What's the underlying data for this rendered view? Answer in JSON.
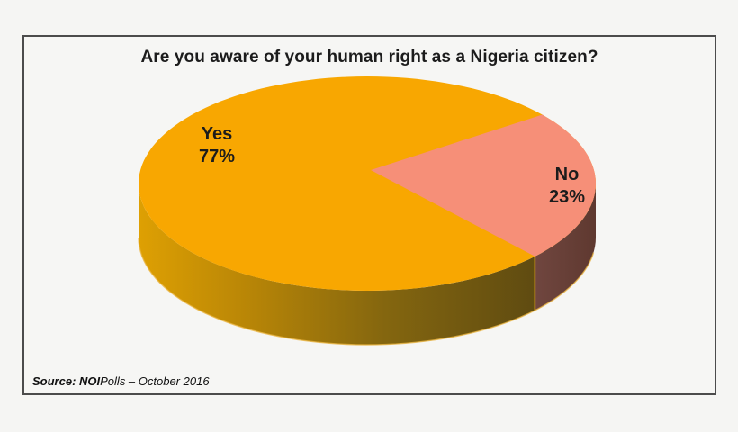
{
  "page": {
    "background": "#f5f5f3"
  },
  "frame": {
    "border_color": "#4c4c4c",
    "background": "#f6f6f4"
  },
  "chart_data": {
    "type": "pie",
    "effect": "3d",
    "title": "Are you aware of your human right as a Nigeria citizen?",
    "legend": "none",
    "labels_on_chart": true,
    "start_angle_deg": 40,
    "categories": [
      "Yes",
      "No"
    ],
    "values": [
      77,
      23
    ],
    "slices": [
      {
        "label": "Yes",
        "value": 77,
        "display": "77%",
        "color": "#f8a701",
        "side_gradient": [
          "#dea003",
          "#bc8806",
          "#84660f",
          "#5f4b11"
        ]
      },
      {
        "label": "No",
        "value": 23,
        "display": "23%",
        "color": "#f68f78",
        "side_gradient": [
          "#714740",
          "#5e382f"
        ]
      }
    ],
    "label_text_color": "#1c1c1c",
    "slice_edge_highlight": "#e9a91c",
    "bottom_rim_highlight": "#eab33c",
    "source": {
      "prefix": "Source: ",
      "brand": "NOI",
      "rest": "Polls – October 2016"
    }
  }
}
